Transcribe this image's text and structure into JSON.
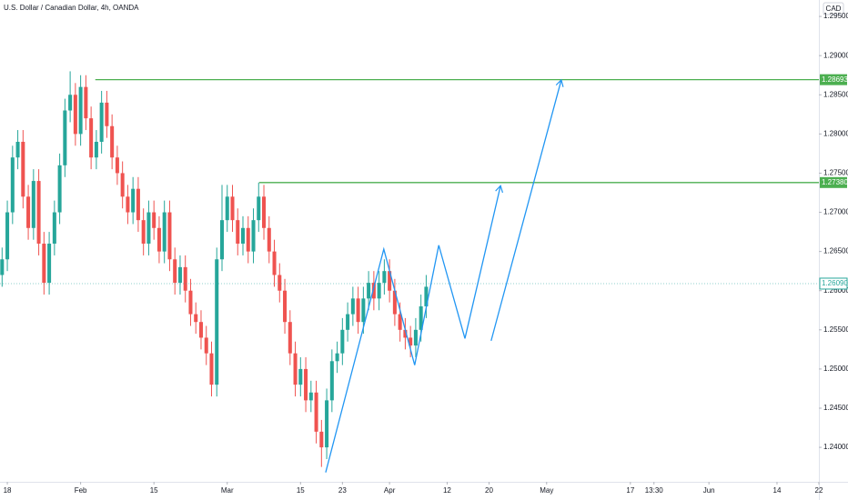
{
  "chart_data": {
    "type": "candlestick",
    "title": "U.S. Dollar / Canadian Dollar, 4h, OANDA",
    "currency": "CAD",
    "up_color": "#26a69a",
    "down_color": "#ef5350",
    "x": [
      17,
      18,
      19,
      20,
      21,
      22,
      23,
      24,
      25,
      26,
      27,
      28,
      29,
      30,
      31,
      32,
      33,
      34,
      35,
      36,
      37,
      38,
      39,
      40,
      41,
      42,
      43,
      44,
      45,
      46,
      47,
      48,
      49,
      50,
      51,
      52,
      53,
      54,
      55,
      56,
      57,
      58,
      59,
      60,
      61,
      62,
      63,
      64,
      65,
      66,
      67,
      68,
      69,
      70,
      71,
      72,
      73,
      74,
      75,
      76,
      77,
      78,
      79,
      80,
      81,
      82,
      83,
      84,
      85,
      86,
      87,
      88,
      89,
      90,
      91,
      92,
      93,
      94,
      95,
      96,
      97,
      98
    ],
    "open": [
      1.262,
      1.264,
      1.27,
      1.277,
      1.279,
      1.272,
      1.268,
      1.274,
      1.266,
      1.261,
      1.266,
      1.27,
      1.276,
      1.283,
      1.285,
      1.28,
      1.286,
      1.282,
      1.277,
      1.279,
      1.284,
      1.281,
      1.277,
      1.275,
      1.272,
      1.27,
      1.273,
      1.269,
      1.266,
      1.27,
      1.268,
      1.265,
      1.27,
      1.264,
      1.261,
      1.263,
      1.26,
      1.257,
      1.256,
      1.254,
      1.252,
      1.248,
      1.264,
      1.269,
      1.272,
      1.269,
      1.266,
      1.268,
      1.265,
      1.269,
      1.272,
      1.268,
      1.265,
      1.262,
      1.26,
      1.256,
      1.252,
      1.248,
      1.25,
      1.246,
      1.247,
      1.242,
      1.24,
      1.246,
      1.251,
      1.252,
      1.255,
      1.257,
      1.259,
      1.256,
      1.259,
      1.261,
      1.259,
      1.261,
      1.2625,
      1.26,
      1.257,
      1.255,
      1.254,
      1.253,
      1.255,
      1.258
    ],
    "high": [
      1.2655,
      1.2715,
      1.2785,
      1.2805,
      1.2805,
      1.2735,
      1.2755,
      1.2755,
      1.2675,
      1.2675,
      1.2715,
      1.2775,
      1.2845,
      1.288,
      1.2865,
      1.2875,
      1.2875,
      1.2835,
      1.2805,
      1.2855,
      1.2855,
      1.2825,
      1.2785,
      1.2765,
      1.2735,
      1.2745,
      1.2745,
      1.2705,
      1.2715,
      1.2715,
      1.2695,
      1.2715,
      1.2715,
      1.2655,
      1.2645,
      1.2645,
      1.2615,
      1.2585,
      1.2575,
      1.2555,
      1.2535,
      1.2655,
      1.2735,
      1.2735,
      1.2735,
      1.2705,
      1.2695,
      1.2695,
      1.2705,
      1.2738,
      1.2735,
      1.2695,
      1.2665,
      1.2635,
      1.2615,
      1.2575,
      1.2535,
      1.2515,
      1.2515,
      1.2485,
      1.2485,
      1.2435,
      1.2475,
      1.2525,
      1.2535,
      1.2565,
      1.2585,
      1.2605,
      1.2605,
      1.2605,
      1.2625,
      1.2625,
      1.2625,
      1.264,
      1.264,
      1.2615,
      1.2585,
      1.2565,
      1.2555,
      1.2565,
      1.2595,
      1.262
    ],
    "low": [
      1.2605,
      1.2625,
      1.2685,
      1.2755,
      1.2705,
      1.2665,
      1.2665,
      1.2645,
      1.2595,
      1.2595,
      1.2645,
      1.2685,
      1.2745,
      1.2815,
      1.2785,
      1.2785,
      1.2805,
      1.2755,
      1.2755,
      1.2775,
      1.2795,
      1.2755,
      1.2735,
      1.2705,
      1.2685,
      1.2685,
      1.2675,
      1.2645,
      1.2645,
      1.2665,
      1.2635,
      1.2635,
      1.2625,
      1.2595,
      1.2595,
      1.2585,
      1.2555,
      1.2545,
      1.2525,
      1.2505,
      1.2465,
      1.2465,
      1.2625,
      1.2675,
      1.2675,
      1.2645,
      1.2645,
      1.2635,
      1.2635,
      1.2675,
      1.2665,
      1.2635,
      1.2605,
      1.2585,
      1.2545,
      1.2505,
      1.2465,
      1.2465,
      1.2445,
      1.2445,
      1.2405,
      1.2375,
      1.2385,
      1.2445,
      1.2495,
      1.2505,
      1.2535,
      1.2555,
      1.2545,
      1.2545,
      1.2575,
      1.2575,
      1.2575,
      1.2595,
      1.2585,
      1.2555,
      1.2535,
      1.2525,
      1.2515,
      1.2515,
      1.2535,
      1.2565
    ],
    "close": [
      1.264,
      1.27,
      1.277,
      1.279,
      1.272,
      1.268,
      1.274,
      1.266,
      1.261,
      1.266,
      1.27,
      1.276,
      1.283,
      1.285,
      1.28,
      1.286,
      1.282,
      1.277,
      1.279,
      1.284,
      1.281,
      1.277,
      1.275,
      1.272,
      1.27,
      1.273,
      1.269,
      1.266,
      1.27,
      1.268,
      1.265,
      1.27,
      1.264,
      1.261,
      1.263,
      1.26,
      1.257,
      1.256,
      1.254,
      1.252,
      1.248,
      1.264,
      1.269,
      1.272,
      1.269,
      1.266,
      1.268,
      1.265,
      1.269,
      1.272,
      1.268,
      1.265,
      1.262,
      1.26,
      1.256,
      1.252,
      1.248,
      1.25,
      1.246,
      1.247,
      1.242,
      1.24,
      1.246,
      1.251,
      1.252,
      1.255,
      1.257,
      1.259,
      1.256,
      1.259,
      1.261,
      1.259,
      1.261,
      1.2625,
      1.26,
      1.257,
      1.255,
      1.254,
      1.253,
      1.255,
      1.258,
      1.2605
    ],
    "xlim": [
      16.6,
      173
    ],
    "ylim": [
      1.2356,
      1.2971
    ],
    "xticks": [
      18,
      {
        "value": 32,
        "label": "Feb"
      },
      {
        "value": 46,
        "label": "15"
      },
      {
        "value": 60,
        "label": "Mar"
      },
      {
        "value": 74,
        "label": "15"
      },
      {
        "value": 82,
        "label": "23"
      },
      {
        "value": 91,
        "label": "Apr"
      },
      {
        "value": 102,
        "label": "12"
      },
      {
        "value": 110,
        "label": "20"
      },
      {
        "value": 121,
        "label": "May"
      },
      {
        "value": 137,
        "label": "17"
      },
      {
        "value": 141.5,
        "label": "13:30"
      },
      {
        "value": 152,
        "label": "Jun"
      },
      {
        "value": 165,
        "label": "14"
      },
      {
        "value": 173,
        "label": "22"
      }
    ],
    "yticks": [
      {
        "value": 1.295,
        "label": "1.29500"
      },
      {
        "value": 1.29,
        "label": "1.29000"
      },
      {
        "value": 1.285,
        "label": "1.28500"
      },
      {
        "value": 1.28,
        "label": "1.28000"
      },
      {
        "value": 1.275,
        "label": "1.27500"
      },
      {
        "value": 1.27,
        "label": "1.27000"
      },
      {
        "value": 1.265,
        "label": "1.26500"
      },
      {
        "value": 1.26,
        "label": "1.26000"
      },
      {
        "value": 1.255,
        "label": "1.25500"
      },
      {
        "value": 1.25,
        "label": "1.25000"
      },
      {
        "value": 1.245,
        "label": "1.24500"
      },
      {
        "value": 1.24,
        "label": "1.24000"
      }
    ],
    "levels": [
      {
        "value": 1.28693,
        "label": "1.28693",
        "start": 34.8,
        "color": "#4caf50"
      },
      {
        "value": 1.2738,
        "label": "1.27380",
        "start": 66.1,
        "color": "#4caf50"
      }
    ],
    "last_price": {
      "value": 1.2609,
      "label": "1.26090",
      "color": "#26a69a"
    },
    "drawings": [
      {
        "color": "#2196f3",
        "x": [
          78.8,
          89.9,
          95.8,
          100.4,
          105.4,
          112.2
        ],
        "y": [
          1.2368,
          1.2653,
          1.2505,
          1.2658,
          1.2539,
          1.2734
        ]
      },
      {
        "color": "#2196f3",
        "x": [
          110.4,
          123.8
        ],
        "y": [
          1.2536,
          1.2869
        ]
      }
    ]
  }
}
